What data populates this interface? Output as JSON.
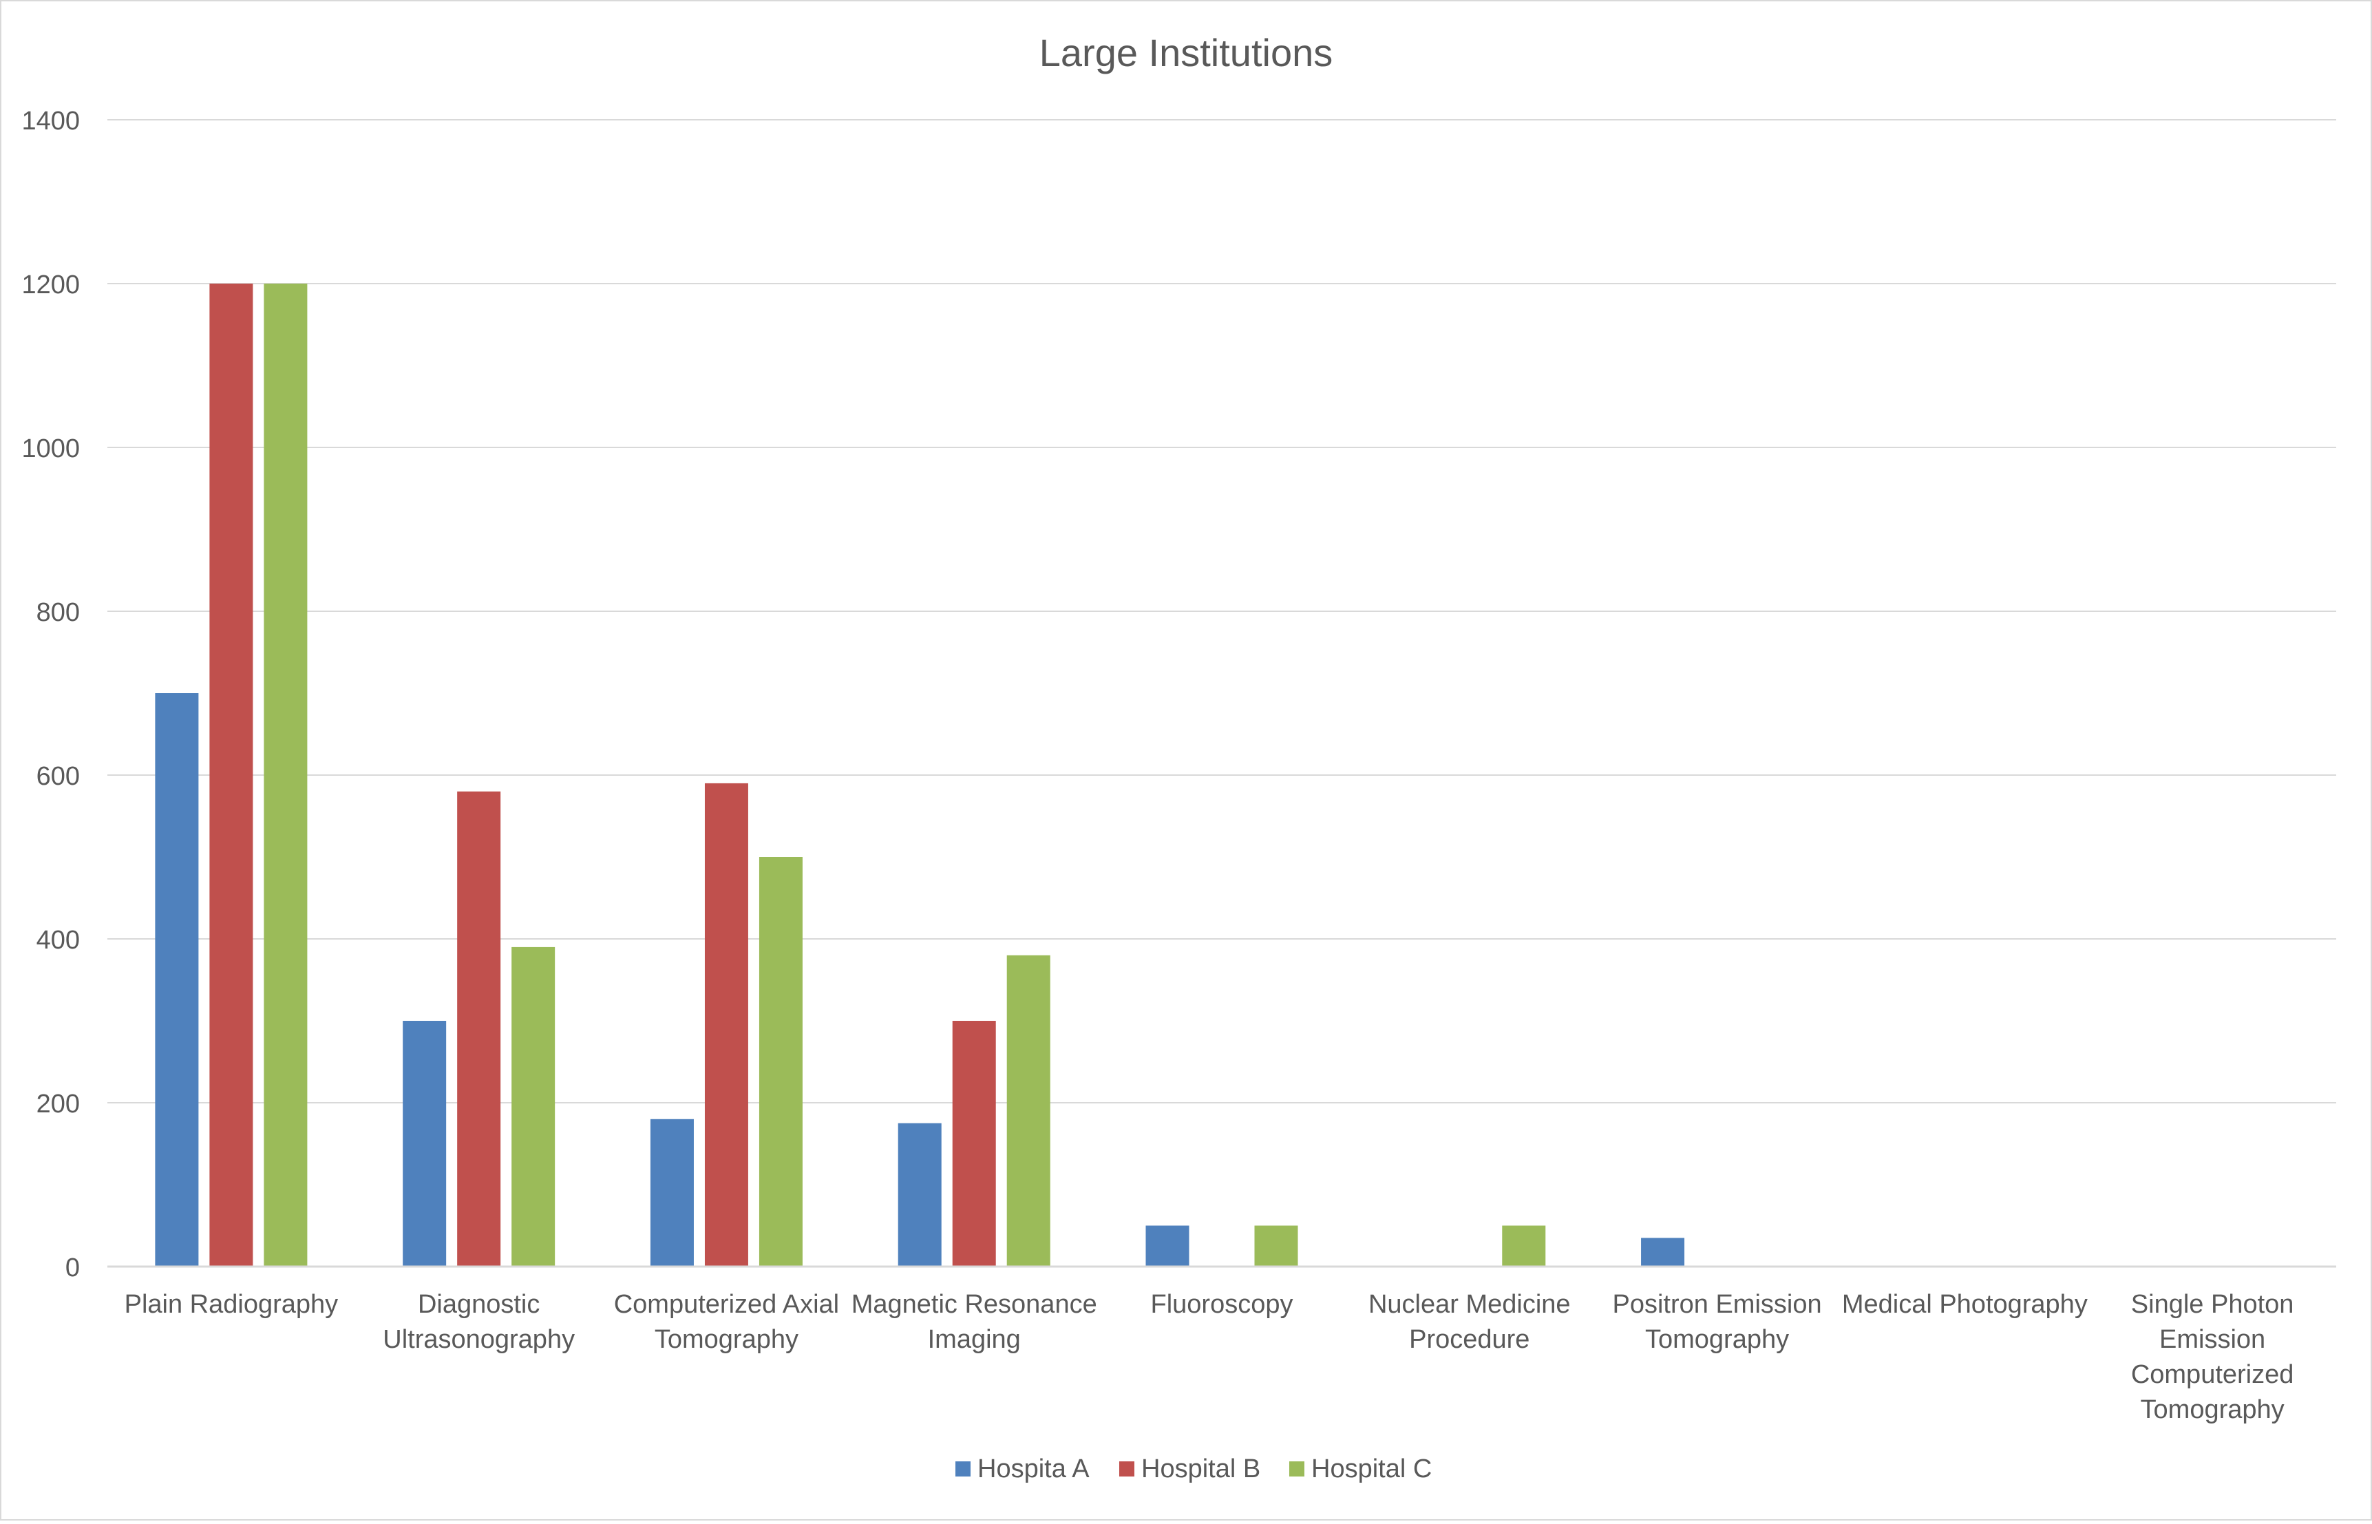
{
  "chart_data": {
    "type": "bar",
    "title": "Large Institutions",
    "xlabel": "",
    "ylabel": "",
    "ylim": [
      0,
      1400
    ],
    "yticks": [
      0,
      200,
      400,
      600,
      800,
      1000,
      1200,
      1400
    ],
    "grid": true,
    "legend_position": "bottom",
    "categories": [
      [
        "Plain Radiography"
      ],
      [
        "Diagnostic",
        "Ultrasonography"
      ],
      [
        "Computerized Axial",
        "Tomography"
      ],
      [
        "Magnetic Resonance",
        "Imaging"
      ],
      [
        "Fluoroscopy"
      ],
      [
        "Nuclear Medicine",
        "Procedure"
      ],
      [
        "Positron Emission",
        "Tomography"
      ],
      [
        "Medical Photography"
      ],
      [
        "Single Photon",
        "Emission",
        "Computerized",
        "Tomography"
      ]
    ],
    "series": [
      {
        "name": "Hospita A",
        "color": "#4F81BD",
        "values": [
          700,
          300,
          180,
          175,
          50,
          0,
          35,
          0,
          0
        ]
      },
      {
        "name": "Hospital B",
        "color": "#C0504D",
        "values": [
          1200,
          580,
          590,
          300,
          0,
          0,
          0,
          0,
          0
        ]
      },
      {
        "name": "Hospital C",
        "color": "#9BBB59",
        "values": [
          1200,
          390,
          500,
          380,
          50,
          50,
          0,
          0,
          0
        ]
      }
    ]
  }
}
